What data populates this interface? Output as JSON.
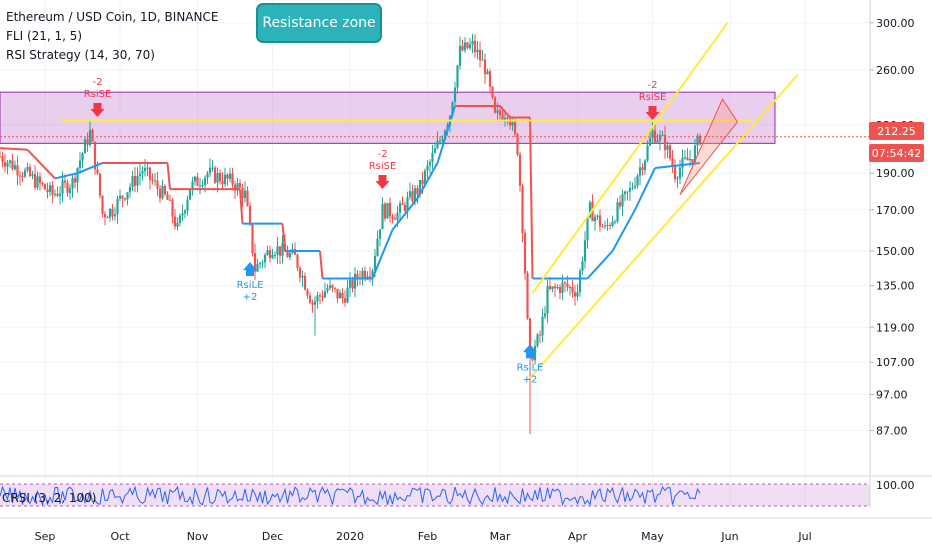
{
  "legend": {
    "title": "Ethereum / USD Coin, 1D, BINANCE",
    "indicator1": "FLI (21, 1, 5)",
    "indicator2": "RSI Strategy (14, 30, 70)"
  },
  "annotation": {
    "callout": "Resistance zone"
  },
  "last_price": {
    "price": "212.25",
    "countdown": "07:54:42"
  },
  "crsi_label": "CRSI (3, 2, 100)",
  "signals": [
    {
      "label": "RsiSE",
      "qty": "-2",
      "direction": "sell",
      "date": "2019-09-22",
      "price": 224
    },
    {
      "label": "RsiSE",
      "qty": "-2",
      "direction": "sell",
      "date": "2020-01-14",
      "price": 180
    },
    {
      "label": "RsiSE",
      "qty": "-2",
      "direction": "sell",
      "date": "2020-05-01",
      "price": 222
    },
    {
      "label": "RsiLE",
      "qty": "+2",
      "direction": "buy",
      "date": "2019-11-22",
      "price": 145
    },
    {
      "label": "RsiLE",
      "qty": "+2",
      "direction": "buy",
      "date": "2020-03-13",
      "price": 113
    }
  ],
  "chart_data": {
    "type": "candlestick",
    "xlabels": [
      "Sep",
      "Oct",
      "Nov",
      "Dec",
      "2020",
      "Feb",
      "Mar",
      "Apr",
      "May",
      "Jun",
      "Jul"
    ],
    "ylabels": [
      "300.00",
      "260.00",
      "220.00",
      "190.00",
      "170.00",
      "150.00",
      "135.00",
      "119.00",
      "107.00",
      "97.00",
      "87.00"
    ],
    "y_scale": "log",
    "ylim": [
      80,
      310
    ],
    "xlim": [
      "2019-08-14",
      "2020-07-27"
    ],
    "resistance_zone": [
      208,
      243
    ],
    "resistance_line": 223,
    "last_price_line": 212.25,
    "channel": {
      "upper": [
        [
          "2020-03-14",
          132
        ],
        [
          "2020-05-31",
          300
        ]
      ],
      "lower": [
        [
          "2020-03-13",
          102
        ],
        [
          "2020-06-28",
          256
        ]
      ]
    },
    "projection_triangle": [
      [
        "2020-05-12",
        178
      ],
      [
        "2020-05-29",
        238
      ],
      [
        "2020-06-04",
        222
      ]
    ],
    "ohlc_anchors": [
      [
        "2019-08-14",
        200
      ],
      [
        "2019-08-26",
        188
      ],
      [
        "2019-09-04",
        178
      ],
      [
        "2019-09-12",
        185
      ],
      [
        "2019-09-19",
        215
      ],
      [
        "2019-09-24",
        168
      ],
      [
        "2019-09-28",
        170
      ],
      [
        "2019-10-10",
        192
      ],
      [
        "2019-10-20",
        175
      ],
      [
        "2019-10-24",
        160
      ],
      [
        "2019-10-29",
        182
      ],
      [
        "2019-11-05",
        190
      ],
      [
        "2019-11-15",
        185
      ],
      [
        "2019-11-20",
        178
      ],
      [
        "2019-11-24",
        142
      ],
      [
        "2019-12-01",
        152
      ],
      [
        "2019-12-10",
        147
      ],
      [
        "2019-12-17",
        128
      ],
      [
        "2019-12-23",
        134
      ],
      [
        "2019-12-29",
        130
      ],
      [
        "2020-01-05",
        140
      ],
      [
        "2020-01-10",
        143
      ],
      [
        "2020-01-14",
        170
      ],
      [
        "2020-01-20",
        168
      ],
      [
        "2020-01-29",
        182
      ],
      [
        "2020-02-06",
        210
      ],
      [
        "2020-02-10",
        228
      ],
      [
        "2020-02-14",
        275
      ],
      [
        "2020-02-19",
        280
      ],
      [
        "2020-02-24",
        262
      ],
      [
        "2020-02-28",
        225
      ],
      [
        "2020-03-04",
        230
      ],
      [
        "2020-03-08",
        205
      ],
      [
        "2020-03-12",
        120
      ],
      [
        "2020-03-13",
        108
      ],
      [
        "2020-03-17",
        116
      ],
      [
        "2020-03-20",
        132
      ],
      [
        "2020-03-26",
        135
      ],
      [
        "2020-04-01",
        133
      ],
      [
        "2020-04-06",
        170
      ],
      [
        "2020-04-12",
        160
      ],
      [
        "2020-04-16",
        168
      ],
      [
        "2020-04-22",
        180
      ],
      [
        "2020-04-28",
        200
      ],
      [
        "2020-05-01",
        215
      ],
      [
        "2020-05-06",
        208
      ],
      [
        "2020-05-10",
        190
      ],
      [
        "2020-05-13",
        195
      ],
      [
        "2020-05-17",
        200
      ],
      [
        "2020-05-20",
        212
      ]
    ],
    "fli_anchors": [
      [
        "2019-08-14",
        205
      ],
      [
        "2019-08-25",
        204
      ],
      [
        "2019-09-05",
        187
      ],
      [
        "2019-09-14",
        190
      ],
      [
        "2019-09-24",
        196
      ],
      [
        "2019-10-20",
        196
      ],
      [
        "2019-10-21",
        181
      ],
      [
        "2019-11-18",
        181
      ],
      [
        "2019-11-19",
        163
      ],
      [
        "2019-12-05",
        163
      ],
      [
        "2019-12-06",
        150
      ],
      [
        "2019-12-20",
        150
      ],
      [
        "2019-12-21",
        138
      ],
      [
        "2020-01-10",
        138
      ],
      [
        "2020-01-18",
        160
      ],
      [
        "2020-01-28",
        176
      ],
      [
        "2020-02-05",
        196
      ],
      [
        "2020-02-12",
        233
      ],
      [
        "2020-03-01",
        233
      ],
      [
        "2020-03-05",
        225
      ],
      [
        "2020-03-13",
        225
      ],
      [
        "2020-03-14",
        138
      ],
      [
        "2020-04-05",
        138
      ],
      [
        "2020-04-15",
        150
      ],
      [
        "2020-04-24",
        170
      ],
      [
        "2020-05-02",
        193
      ],
      [
        "2020-05-20",
        196
      ]
    ]
  }
}
